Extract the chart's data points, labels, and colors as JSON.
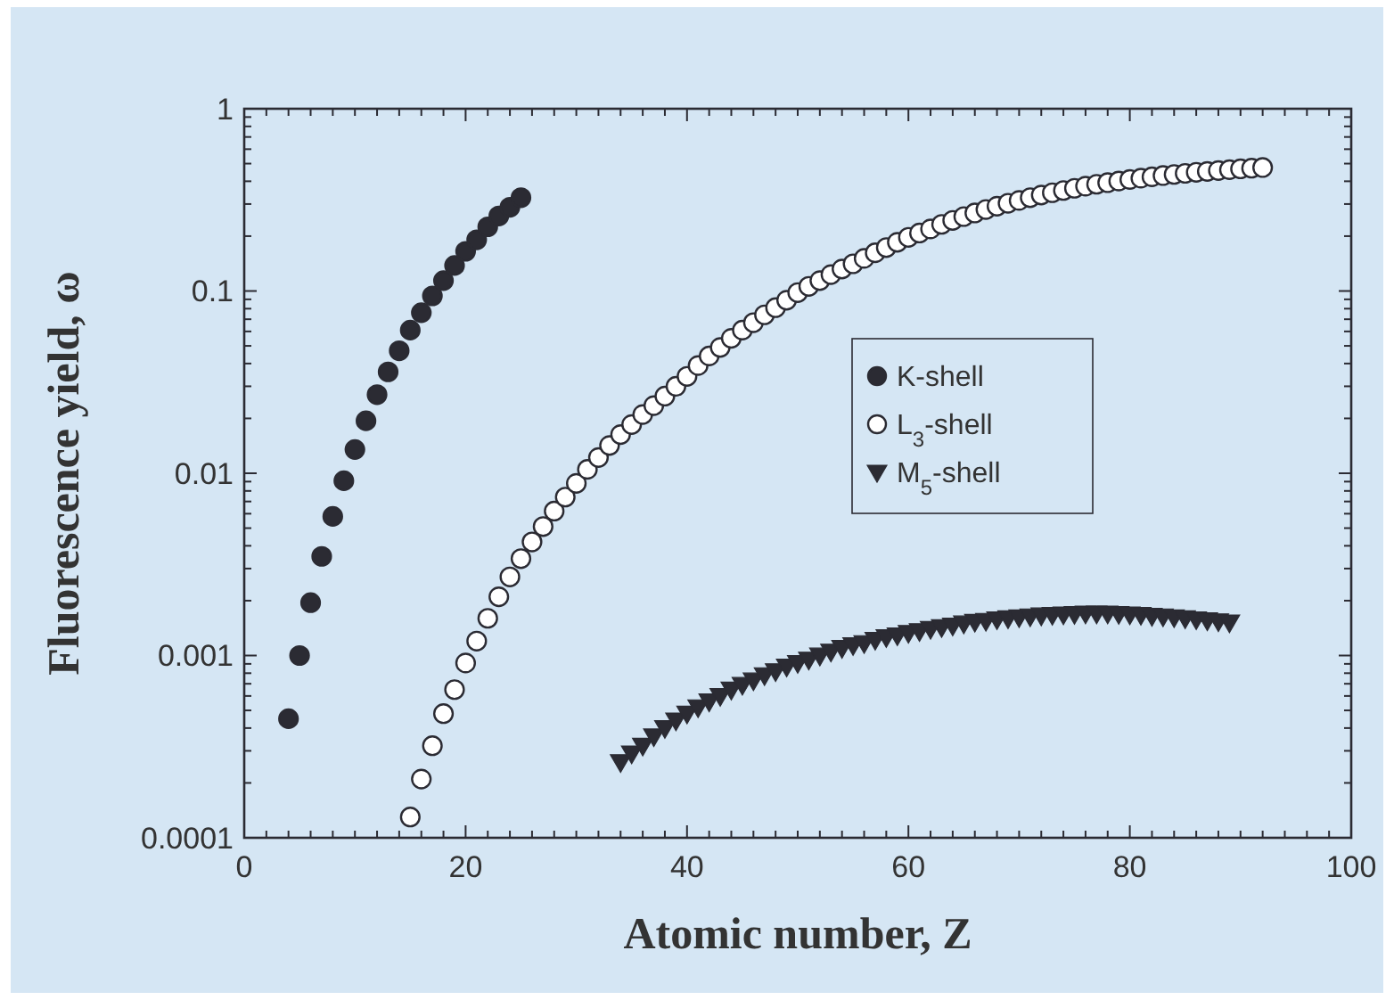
{
  "chart_data": {
    "type": "scatter",
    "xlabel": "Atomic number, Z",
    "ylabel": "Fluorescence yield, ω",
    "xlim": [
      0,
      100
    ],
    "xticks": [
      0,
      {
        "value": 2,
        "label": null
      },
      {
        "value": 4,
        "label": null
      },
      {
        "value": 6,
        "label": null
      },
      {
        "value": 8,
        "label": null
      },
      {
        "value": 10,
        "label": null
      },
      {
        "value": 12,
        "label": null
      },
      {
        "value": 14,
        "label": null
      },
      {
        "value": 16,
        "label": null
      },
      {
        "value": 18,
        "label": null
      },
      20,
      {
        "value": 22,
        "label": null
      },
      {
        "value": 24,
        "label": null
      },
      {
        "value": 26,
        "label": null
      },
      {
        "value": 28,
        "label": null
      },
      {
        "value": 30,
        "label": null
      },
      {
        "value": 32,
        "label": null
      },
      {
        "value": 34,
        "label": null
      },
      {
        "value": 36,
        "label": null
      },
      {
        "value": 38,
        "label": null
      },
      40,
      {
        "value": 42,
        "label": null
      },
      {
        "value": 44,
        "label": null
      },
      {
        "value": 46,
        "label": null
      },
      {
        "value": 48,
        "label": null
      },
      {
        "value": 50,
        "label": null
      },
      {
        "value": 52,
        "label": null
      },
      {
        "value": 54,
        "label": null
      },
      {
        "value": 56,
        "label": null
      },
      {
        "value": 58,
        "label": null
      },
      60,
      {
        "value": 62,
        "label": null
      },
      {
        "value": 64,
        "label": null
      },
      {
        "value": 66,
        "label": null
      },
      {
        "value": 68,
        "label": null
      },
      {
        "value": 70,
        "label": null
      },
      {
        "value": 72,
        "label": null
      },
      {
        "value": 74,
        "label": null
      },
      {
        "value": 76,
        "label": null
      },
      {
        "value": 78,
        "label": null
      },
      80,
      {
        "value": 82,
        "label": null
      },
      {
        "value": 84,
        "label": null
      },
      {
        "value": 86,
        "label": null
      },
      {
        "value": 88,
        "label": null
      },
      {
        "value": 90,
        "label": null
      },
      {
        "value": 92,
        "label": null
      },
      {
        "value": 94,
        "label": null
      },
      {
        "value": 96,
        "label": null
      },
      {
        "value": 98,
        "label": null
      },
      100
    ],
    "ylim": [
      0.0001,
      1
    ],
    "log": true,
    "yticks": [
      0.0001,
      {
        "value": 0.0002,
        "label": null
      },
      {
        "value": 0.0003,
        "label": null
      },
      {
        "value": 0.0004,
        "label": null
      },
      {
        "value": 0.0005,
        "label": null
      },
      {
        "value": 0.0006,
        "label": null
      },
      {
        "value": 0.0007,
        "label": null
      },
      {
        "value": 0.0008,
        "label": null
      },
      {
        "value": 0.0009,
        "label": null
      },
      0.001,
      {
        "value": 0.002,
        "label": null
      },
      {
        "value": 0.003,
        "label": null
      },
      {
        "value": 0.004,
        "label": null
      },
      {
        "value": 0.005,
        "label": null
      },
      {
        "value": 0.006,
        "label": null
      },
      {
        "value": 0.007,
        "label": null
      },
      {
        "value": 0.008,
        "label": null
      },
      {
        "value": 0.009,
        "label": null
      },
      0.01,
      {
        "value": 0.02,
        "label": null
      },
      {
        "value": 0.03,
        "label": null
      },
      {
        "value": 0.04,
        "label": null
      },
      {
        "value": 0.05,
        "label": null
      },
      {
        "value": 0.06,
        "label": null
      },
      {
        "value": 0.07,
        "label": null
      },
      {
        "value": 0.08,
        "label": null
      },
      {
        "value": 0.09,
        "label": null
      },
      0.1,
      {
        "value": 0.2,
        "label": null
      },
      {
        "value": 0.3,
        "label": null
      },
      {
        "value": 0.4,
        "label": null
      },
      {
        "value": 0.5,
        "label": null
      },
      {
        "value": 0.6,
        "label": null
      },
      {
        "value": 0.7,
        "label": null
      },
      {
        "value": 0.8,
        "label": null
      },
      {
        "value": 0.9,
        "label": null
      },
      1
    ],
    "grid": false,
    "legend": "right",
    "series": [
      {
        "name": "K-shell",
        "color": "#2b2b33",
        "marker": "circle",
        "x": [
          4,
          5,
          6,
          7,
          8,
          9,
          10,
          11,
          12,
          13,
          14,
          15,
          16,
          17,
          18,
          19,
          20,
          21,
          22,
          23,
          24,
          25
        ],
        "values": [
          0.00045,
          0.001,
          0.00195,
          0.0035,
          0.0058,
          0.0091,
          0.0135,
          0.0194,
          0.027,
          0.036,
          0.047,
          0.061,
          0.076,
          0.094,
          0.114,
          0.138,
          0.165,
          0.191,
          0.225,
          0.258,
          0.288,
          0.325
        ]
      },
      {
        "name": "L$_{3}$-shell",
        "color": "#ffffff",
        "marker": "circle",
        "x": [
          15,
          16,
          17,
          18,
          19,
          20,
          21,
          22,
          23,
          24,
          25,
          26,
          27,
          28,
          29,
          30,
          31,
          32,
          33,
          34,
          35,
          36,
          37,
          38,
          39,
          40,
          41,
          42,
          43,
          44,
          45,
          46,
          47,
          48,
          49,
          50,
          51,
          52,
          53,
          54,
          55,
          56,
          57,
          58,
          59,
          60,
          61,
          62,
          63,
          64,
          65,
          66,
          67,
          68,
          69,
          70,
          71,
          72,
          73,
          74,
          75,
          76,
          77,
          78,
          79,
          80,
          81,
          82,
          83,
          84,
          85,
          86,
          87,
          88,
          89,
          90,
          91,
          92
        ],
        "values": [
          0.00013,
          0.00021,
          0.00032,
          0.00048,
          0.00065,
          0.00091,
          0.0012,
          0.0016,
          0.0021,
          0.0027,
          0.0034,
          0.0042,
          0.0051,
          0.0062,
          0.0074,
          0.0088,
          0.0105,
          0.0122,
          0.0142,
          0.0163,
          0.0185,
          0.021,
          0.0235,
          0.0265,
          0.03,
          0.034,
          0.039,
          0.044,
          0.049,
          0.055,
          0.061,
          0.067,
          0.074,
          0.081,
          0.089,
          0.098,
          0.106,
          0.114,
          0.123,
          0.132,
          0.141,
          0.151,
          0.162,
          0.173,
          0.185,
          0.197,
          0.208,
          0.219,
          0.232,
          0.244,
          0.256,
          0.268,
          0.28,
          0.292,
          0.303,
          0.314,
          0.325,
          0.336,
          0.346,
          0.356,
          0.366,
          0.376,
          0.385,
          0.393,
          0.401,
          0.409,
          0.416,
          0.423,
          0.43,
          0.436,
          0.442,
          0.448,
          0.453,
          0.458,
          0.463,
          0.468,
          0.472,
          0.476
        ]
      },
      {
        "name": "M$_{5}$-shell",
        "color": "#2b2b33",
        "marker": "triangle",
        "x": [
          34,
          35,
          36,
          37,
          38,
          39,
          40,
          41,
          42,
          43,
          44,
          45,
          46,
          47,
          48,
          49,
          50,
          51,
          52,
          53,
          54,
          55,
          56,
          57,
          58,
          59,
          60,
          61,
          62,
          63,
          64,
          65,
          66,
          67,
          68,
          69,
          70,
          71,
          72,
          73,
          74,
          75,
          76,
          77,
          78,
          79,
          80,
          81,
          82,
          83,
          84,
          85,
          86,
          87,
          88,
          89
        ],
        "values": [
          0.00026,
          0.00029,
          0.00032,
          0.00036,
          0.0004,
          0.00044,
          0.00048,
          0.00052,
          0.00056,
          0.0006,
          0.00065,
          0.00069,
          0.00073,
          0.00078,
          0.00082,
          0.00087,
          0.00091,
          0.00095,
          0.001,
          0.00105,
          0.0011,
          0.00114,
          0.00117,
          0.00122,
          0.00126,
          0.00129,
          0.00133,
          0.00136,
          0.0014,
          0.00143,
          0.00146,
          0.0015,
          0.00153,
          0.00155,
          0.00158,
          0.0016,
          0.00162,
          0.00164,
          0.00166,
          0.00167,
          0.00168,
          0.00169,
          0.0017,
          0.0017,
          0.0017,
          0.00169,
          0.00168,
          0.00167,
          0.00165,
          0.00164,
          0.00162,
          0.0016,
          0.00158,
          0.00156,
          0.00154,
          0.00152
        ]
      }
    ]
  }
}
